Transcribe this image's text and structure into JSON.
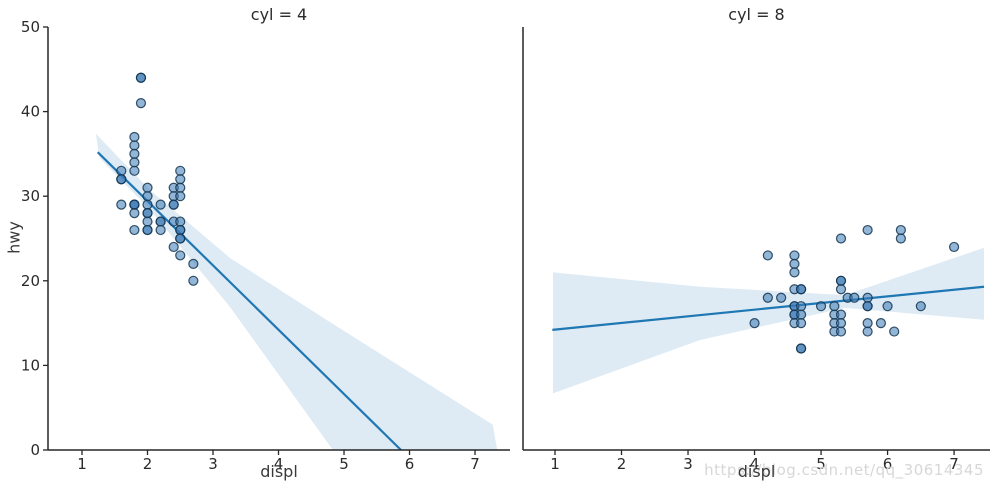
{
  "watermark": "https://blog.csdn.net/qq_30614345",
  "colors": {
    "point_fill": "#3b79b5",
    "point_edge": "#12344f",
    "line": "#1f77b4",
    "band": "rgba(31,119,180,0.15)",
    "spine": "#262626",
    "tick_label": "#2b2b2b"
  },
  "chart_data": {
    "type": "scatter",
    "xlabel": "displ",
    "ylabel": "hwy",
    "ylim": [
      0,
      50
    ],
    "yticks": [
      0,
      10,
      20,
      30,
      40,
      50
    ],
    "xticks": [
      1,
      2,
      3,
      4,
      5,
      6,
      7
    ],
    "grid": false,
    "facets": [
      {
        "title": "cyl = 4",
        "xlim": [
          0.481,
          7.534
        ],
        "points": [
          [
            1.6,
            33
          ],
          [
            1.6,
            32
          ],
          [
            1.6,
            32
          ],
          [
            1.6,
            29
          ],
          [
            1.8,
            37
          ],
          [
            1.8,
            36
          ],
          [
            1.8,
            35
          ],
          [
            1.8,
            34
          ],
          [
            1.8,
            33
          ],
          [
            1.8,
            29
          ],
          [
            1.8,
            29
          ],
          [
            1.8,
            29
          ],
          [
            1.8,
            28
          ],
          [
            1.8,
            26
          ],
          [
            1.9,
            44
          ],
          [
            1.9,
            44
          ],
          [
            1.9,
            41
          ],
          [
            2.0,
            31
          ],
          [
            2.0,
            30
          ],
          [
            2.0,
            29
          ],
          [
            2.0,
            28
          ],
          [
            2.0,
            28
          ],
          [
            2.0,
            27
          ],
          [
            2.0,
            26
          ],
          [
            2.0,
            26
          ],
          [
            2.2,
            29
          ],
          [
            2.2,
            27
          ],
          [
            2.2,
            27
          ],
          [
            2.2,
            26
          ],
          [
            2.4,
            31
          ],
          [
            2.4,
            30
          ],
          [
            2.4,
            29
          ],
          [
            2.4,
            29
          ],
          [
            2.4,
            27
          ],
          [
            2.4,
            24
          ],
          [
            2.5,
            33
          ],
          [
            2.5,
            32
          ],
          [
            2.5,
            31
          ],
          [
            2.5,
            30
          ],
          [
            2.5,
            27
          ],
          [
            2.5,
            26
          ],
          [
            2.5,
            26
          ],
          [
            2.5,
            25
          ],
          [
            2.5,
            25
          ],
          [
            2.5,
            23
          ],
          [
            2.7,
            22
          ],
          [
            2.7,
            20
          ]
        ],
        "regression_line": {
          "x1": 1.24,
          "y1": 35.2,
          "x2": 5.87,
          "y2": 0
        },
        "ci_band": [
          [
            1.21,
            37.4
          ],
          [
            2.04,
            30.7
          ],
          [
            3.26,
            22.7
          ],
          [
            4.79,
            15.1
          ],
          [
            7.27,
            3.0
          ],
          [
            7.34,
            0
          ],
          [
            4.83,
            0
          ],
          [
            3.26,
            16.9
          ],
          [
            2.04,
            28.4
          ],
          [
            1.27,
            34.5
          ]
        ]
      },
      {
        "title": "cyl = 8",
        "xlim": [
          0.519,
          7.54
        ],
        "points": [
          [
            4.0,
            15
          ],
          [
            4.2,
            23
          ],
          [
            4.2,
            18
          ],
          [
            4.4,
            18
          ],
          [
            4.6,
            23
          ],
          [
            4.6,
            22
          ],
          [
            4.6,
            21
          ],
          [
            4.6,
            19
          ],
          [
            4.6,
            17
          ],
          [
            4.6,
            17
          ],
          [
            4.6,
            16
          ],
          [
            4.6,
            16
          ],
          [
            4.6,
            15
          ],
          [
            4.7,
            19
          ],
          [
            4.7,
            19
          ],
          [
            4.7,
            17
          ],
          [
            4.7,
            16
          ],
          [
            4.7,
            15
          ],
          [
            4.7,
            12
          ],
          [
            4.7,
            12
          ],
          [
            5.0,
            17
          ],
          [
            5.2,
            17
          ],
          [
            5.2,
            16
          ],
          [
            5.2,
            15
          ],
          [
            5.2,
            14
          ],
          [
            5.3,
            25
          ],
          [
            5.3,
            20
          ],
          [
            5.3,
            20
          ],
          [
            5.3,
            19
          ],
          [
            5.3,
            16
          ],
          [
            5.3,
            15
          ],
          [
            5.3,
            14
          ],
          [
            5.4,
            18
          ],
          [
            5.5,
            18
          ],
          [
            5.7,
            26
          ],
          [
            5.7,
            18
          ],
          [
            5.7,
            17
          ],
          [
            5.7,
            17
          ],
          [
            5.7,
            15
          ],
          [
            5.7,
            14
          ],
          [
            5.9,
            15
          ],
          [
            6.0,
            17
          ],
          [
            6.1,
            14
          ],
          [
            6.2,
            26
          ],
          [
            6.2,
            25
          ],
          [
            6.5,
            17
          ],
          [
            7.0,
            24
          ]
        ],
        "regression_line": {
          "x1": 0.96,
          "y1": 14.2,
          "x2": 7.45,
          "y2": 19.3
        },
        "ci_band": [
          [
            0.97,
            21.0
          ],
          [
            3.18,
            19.3
          ],
          [
            5.36,
            18.3
          ],
          [
            7.45,
            23.9
          ],
          [
            7.45,
            15.4
          ],
          [
            5.36,
            16.8
          ],
          [
            3.18,
            13.0
          ],
          [
            0.97,
            6.7
          ]
        ]
      }
    ]
  }
}
